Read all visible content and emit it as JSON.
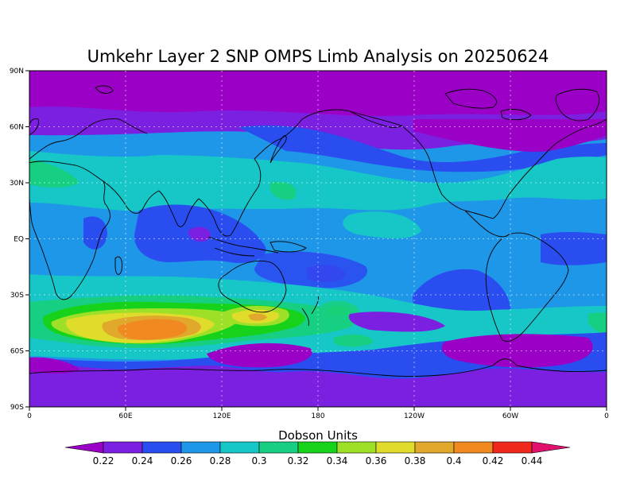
{
  "title": "Umkehr Layer 2 SNP OMPS Limb Analysis on 20250624",
  "lat_ticks": [
    "90N",
    "60N",
    "30N",
    "EQ",
    "30S",
    "60S",
    "90S"
  ],
  "lon_ticks": [
    "0",
    "60E",
    "120E",
    "180",
    "120W",
    "60W",
    "0"
  ],
  "colorbar": {
    "title": "Dobson Units",
    "labels": [
      "0.22",
      "0.24",
      "0.26",
      "0.28",
      "0.3",
      "0.32",
      "0.34",
      "0.36",
      "0.38",
      "0.4",
      "0.42",
      "0.44"
    ],
    "colors": [
      "#9b00c6",
      "#7b1fe0",
      "#2a4df0",
      "#1e97e8",
      "#17c6c6",
      "#17cf82",
      "#17d21a",
      "#9ee028",
      "#e0dc2c",
      "#e0a92c",
      "#f08a20",
      "#f0281c",
      "#e0106e"
    ]
  },
  "colors": {
    "c1": "#9b00c6",
    "c2": "#7b1fe0",
    "c3": "#2a4df0",
    "c4": "#1e97e8",
    "c5": "#17c6c6",
    "c6": "#17cf82",
    "c7": "#17d21a",
    "c8": "#9ee028",
    "c9": "#e0dc2c",
    "c10": "#e0a92c",
    "c11": "#f08a20"
  }
}
